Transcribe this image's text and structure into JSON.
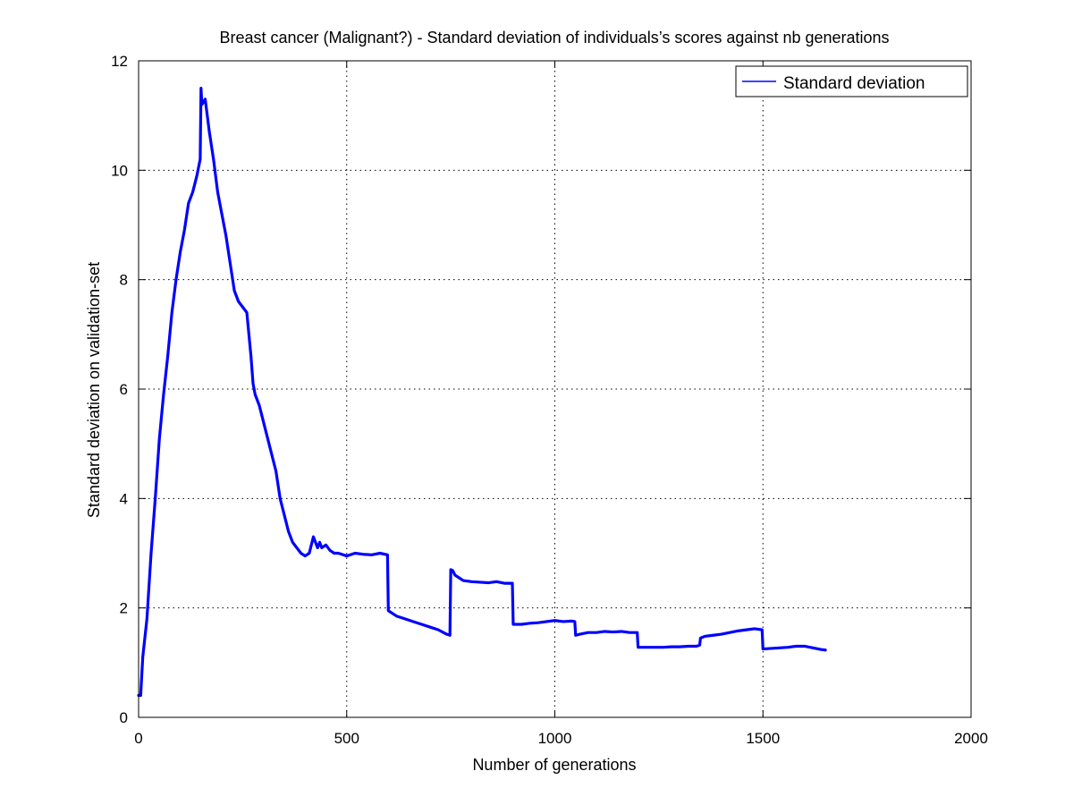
{
  "chart_data": {
    "type": "line",
    "title": "Breast cancer (Malignant?) - Standard deviation of individuals’s scores against nb generations",
    "xlabel": "Number of generations",
    "ylabel": "Standard deviation on validation-set",
    "xlim": [
      0,
      2000
    ],
    "ylim": [
      0,
      12
    ],
    "xticks": [
      "0",
      "500",
      "1000",
      "1500",
      "2000"
    ],
    "yticks": [
      "0",
      "2",
      "4",
      "6",
      "8",
      "10",
      "12"
    ],
    "grid": true,
    "legend": {
      "position": "top-right",
      "entries": [
        "Standard deviation"
      ]
    },
    "series": [
      {
        "name": "Standard deviation",
        "color": "#0000ff",
        "x": [
          0,
          5,
          10,
          20,
          30,
          40,
          50,
          60,
          70,
          80,
          90,
          100,
          110,
          120,
          130,
          140,
          148,
          150,
          152,
          160,
          165,
          170,
          180,
          190,
          200,
          210,
          220,
          230,
          240,
          250,
          260,
          270,
          275,
          280,
          290,
          300,
          310,
          320,
          330,
          340,
          350,
          360,
          370,
          380,
          390,
          400,
          410,
          420,
          425,
          430,
          435,
          440,
          450,
          460,
          470,
          480,
          500,
          520,
          540,
          560,
          580,
          598,
          600,
          610,
          620,
          640,
          660,
          680,
          700,
          720,
          740,
          748,
          750,
          755,
          760,
          770,
          780,
          800,
          820,
          840,
          860,
          880,
          898,
          900,
          910,
          920,
          940,
          960,
          980,
          1000,
          1020,
          1040,
          1048,
          1050,
          1060,
          1080,
          1100,
          1120,
          1140,
          1160,
          1180,
          1198,
          1200,
          1220,
          1240,
          1260,
          1280,
          1300,
          1320,
          1340,
          1348,
          1350,
          1360,
          1380,
          1400,
          1420,
          1440,
          1460,
          1480,
          1498,
          1500,
          1520,
          1540,
          1560,
          1580,
          1600,
          1620,
          1640,
          1650
        ],
        "values": [
          0.4,
          0.4,
          1.1,
          1.8,
          3.0,
          4.0,
          5.1,
          5.9,
          6.6,
          7.4,
          8.0,
          8.5,
          8.9,
          9.4,
          9.6,
          9.9,
          10.2,
          11.5,
          11.2,
          11.3,
          11.0,
          10.7,
          10.2,
          9.6,
          9.2,
          8.8,
          8.3,
          7.8,
          7.6,
          7.5,
          7.4,
          6.6,
          6.1,
          5.9,
          5.7,
          5.4,
          5.1,
          4.8,
          4.5,
          4.0,
          3.7,
          3.4,
          3.2,
          3.1,
          3.0,
          2.95,
          3.0,
          3.3,
          3.2,
          3.1,
          3.2,
          3.1,
          3.15,
          3.05,
          3.0,
          3.0,
          2.95,
          3.0,
          2.98,
          2.97,
          3.0,
          2.97,
          1.95,
          1.9,
          1.85,
          1.8,
          1.75,
          1.7,
          1.65,
          1.6,
          1.52,
          1.5,
          2.7,
          2.68,
          2.6,
          2.55,
          2.5,
          2.48,
          2.47,
          2.46,
          2.48,
          2.45,
          2.45,
          1.7,
          1.7,
          1.7,
          1.72,
          1.73,
          1.75,
          1.77,
          1.75,
          1.76,
          1.75,
          1.5,
          1.52,
          1.55,
          1.55,
          1.57,
          1.56,
          1.57,
          1.55,
          1.55,
          1.28,
          1.28,
          1.28,
          1.28,
          1.29,
          1.29,
          1.3,
          1.3,
          1.32,
          1.45,
          1.48,
          1.5,
          1.52,
          1.55,
          1.58,
          1.6,
          1.62,
          1.6,
          1.25,
          1.26,
          1.27,
          1.28,
          1.3,
          1.3,
          1.27,
          1.24,
          1.23
        ]
      }
    ]
  }
}
